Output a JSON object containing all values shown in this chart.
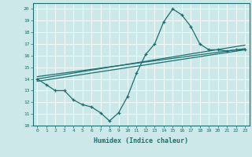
{
  "xlabel": "Humidex (Indice chaleur)",
  "xlim": [
    -0.5,
    23.5
  ],
  "ylim": [
    10,
    20.5
  ],
  "yticks": [
    10,
    11,
    12,
    13,
    14,
    15,
    16,
    17,
    18,
    19,
    20
  ],
  "xticks": [
    0,
    1,
    2,
    3,
    4,
    5,
    6,
    7,
    8,
    9,
    10,
    11,
    12,
    13,
    14,
    15,
    16,
    17,
    18,
    19,
    20,
    21,
    22,
    23
  ],
  "bg_color": "#cce8e8",
  "line_color": "#1a7070",
  "grid_color": "#b0d4d4",
  "line1_x": [
    0,
    1,
    2,
    3,
    4,
    5,
    6,
    7,
    8,
    9,
    10,
    11,
    12,
    13,
    14,
    15,
    16,
    17,
    18,
    19,
    20,
    21,
    22,
    23
  ],
  "line1_y": [
    14.0,
    13.5,
    13.0,
    13.0,
    12.2,
    11.8,
    11.6,
    11.1,
    10.4,
    11.1,
    12.5,
    14.5,
    16.1,
    17.0,
    18.9,
    20.0,
    19.5,
    18.5,
    17.0,
    16.5,
    16.5,
    16.4,
    16.5,
    16.5
  ],
  "line2_x": [
    0,
    23
  ],
  "line2_y": [
    13.8,
    16.5
  ],
  "line3_x": [
    0,
    23
  ],
  "line3_y": [
    14.2,
    16.6
  ],
  "line4_x": [
    0,
    23
  ],
  "line4_y": [
    14.0,
    16.9
  ]
}
